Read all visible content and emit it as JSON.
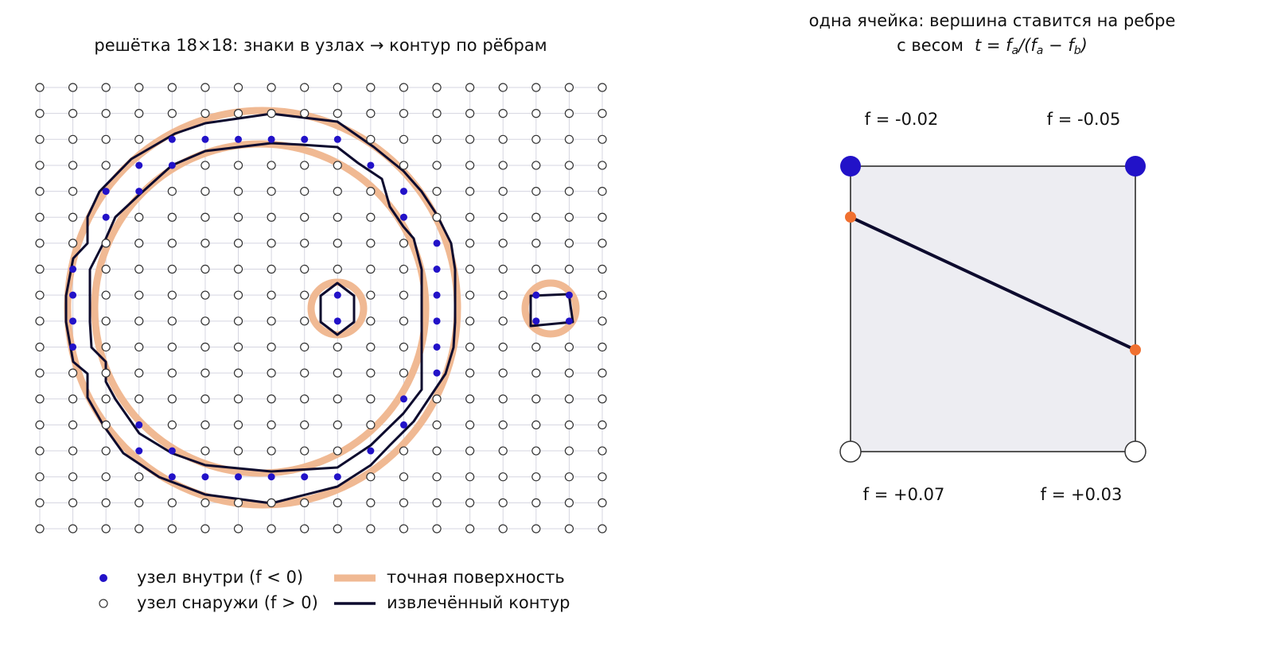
{
  "left": {
    "title": "решётка 18×18: знаки в узлах → контур по рёбрам",
    "legend": [
      "узел внутри (f < 0)",
      "узел снаружи (f > 0)",
      "точная поверхность",
      "извлечённый контур"
    ]
  },
  "right": {
    "title": "одна ячейка: вершина ставится на ребре",
    "subtitle": "с весом",
    "formula": [
      "t = f",
      "a",
      "/(f",
      "a",
      " − f",
      "b",
      ")"
    ],
    "corners": [
      "f = -0.02",
      "f = -0.05",
      "f = +0.07",
      "f = +0.03"
    ]
  }
}
